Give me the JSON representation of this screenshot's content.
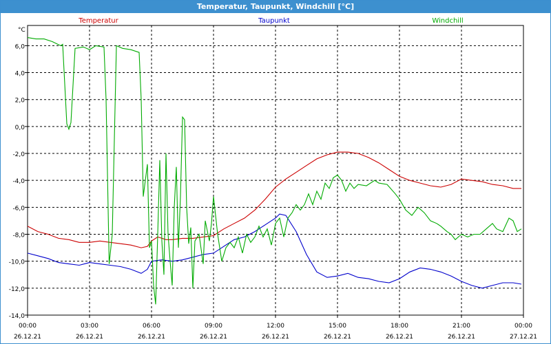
{
  "window": {
    "title": "Temperatur, Taupunkt, Windchill [°C]"
  },
  "chart_data": {
    "type": "line",
    "title": "Temperatur, Taupunkt, Windchill [°C]",
    "ylabel": "°C",
    "ylim": [
      -14,
      7.5
    ],
    "yticks": [
      "6,0",
      "4,0",
      "2,0",
      "0,0",
      "-2,0",
      "-4,0",
      "-6,0",
      "-8,0",
      "-10,0",
      "-12,0",
      "-14,0"
    ],
    "ytick_values": [
      6,
      4,
      2,
      0,
      -2,
      -4,
      -6,
      -8,
      -10,
      -12,
      -14
    ],
    "xlim": [
      0,
      24
    ],
    "xticks": [
      {
        "time": "00:00",
        "date": "26.12.21",
        "h": 0
      },
      {
        "time": "03:00",
        "date": "26.12.21",
        "h": 3
      },
      {
        "time": "06:00",
        "date": "26.12.21",
        "h": 6
      },
      {
        "time": "09:00",
        "date": "26.12.21",
        "h": 9
      },
      {
        "time": "12:00",
        "date": "26.12.21",
        "h": 12
      },
      {
        "time": "15:00",
        "date": "26.12.21",
        "h": 15
      },
      {
        "time": "18:00",
        "date": "26.12.21",
        "h": 18
      },
      {
        "time": "21:00",
        "date": "26.12.21",
        "h": 21
      },
      {
        "time": "00:00",
        "date": "27.12.21",
        "h": 24
      }
    ],
    "grid": true,
    "series": [
      {
        "name": "Temperatur",
        "color": "#cc0000",
        "points": [
          [
            0,
            -7.4
          ],
          [
            0.5,
            -7.8
          ],
          [
            1,
            -8.0
          ],
          [
            1.5,
            -8.3
          ],
          [
            2,
            -8.4
          ],
          [
            2.5,
            -8.6
          ],
          [
            3,
            -8.6
          ],
          [
            3.5,
            -8.5
          ],
          [
            4,
            -8.6
          ],
          [
            4.5,
            -8.7
          ],
          [
            5,
            -8.8
          ],
          [
            5.5,
            -9.0
          ],
          [
            5.8,
            -8.9
          ],
          [
            6,
            -8.5
          ],
          [
            6.3,
            -8.2
          ],
          [
            6.7,
            -8.4
          ],
          [
            7,
            -8.4
          ],
          [
            7.5,
            -8.3
          ],
          [
            8,
            -8.3
          ],
          [
            8.5,
            -8.2
          ],
          [
            9,
            -8.1
          ],
          [
            9.5,
            -7.6
          ],
          [
            10,
            -7.2
          ],
          [
            10.5,
            -6.8
          ],
          [
            11,
            -6.2
          ],
          [
            11.5,
            -5.4
          ],
          [
            12,
            -4.5
          ],
          [
            12.5,
            -3.9
          ],
          [
            13,
            -3.4
          ],
          [
            13.5,
            -2.9
          ],
          [
            14,
            -2.4
          ],
          [
            14.5,
            -2.1
          ],
          [
            15,
            -1.9
          ],
          [
            15.5,
            -1.9
          ],
          [
            16,
            -2.0
          ],
          [
            16.5,
            -2.3
          ],
          [
            17,
            -2.7
          ],
          [
            17.5,
            -3.2
          ],
          [
            18,
            -3.7
          ],
          [
            18.5,
            -4.0
          ],
          [
            19,
            -4.2
          ],
          [
            19.5,
            -4.4
          ],
          [
            20,
            -4.5
          ],
          [
            20.5,
            -4.3
          ],
          [
            21,
            -3.9
          ],
          [
            21.5,
            -4.0
          ],
          [
            22,
            -4.1
          ],
          [
            22.5,
            -4.3
          ],
          [
            23,
            -4.4
          ],
          [
            23.5,
            -4.6
          ],
          [
            23.9,
            -4.6
          ]
        ]
      },
      {
        "name": "Taupunkt",
        "color": "#0000cc",
        "points": [
          [
            0,
            -9.4
          ],
          [
            0.5,
            -9.6
          ],
          [
            1,
            -9.8
          ],
          [
            1.5,
            -10.1
          ],
          [
            2,
            -10.2
          ],
          [
            2.5,
            -10.3
          ],
          [
            3,
            -10.1
          ],
          [
            3.5,
            -10.2
          ],
          [
            4,
            -10.3
          ],
          [
            4.5,
            -10.4
          ],
          [
            5,
            -10.6
          ],
          [
            5.5,
            -10.9
          ],
          [
            5.8,
            -10.6
          ],
          [
            6,
            -10.0
          ],
          [
            6.5,
            -9.9
          ],
          [
            7,
            -10.0
          ],
          [
            7.5,
            -9.9
          ],
          [
            8,
            -9.7
          ],
          [
            8.5,
            -9.5
          ],
          [
            9,
            -9.4
          ],
          [
            9.5,
            -8.9
          ],
          [
            10,
            -8.4
          ],
          [
            10.5,
            -8.2
          ],
          [
            11,
            -7.8
          ],
          [
            11.5,
            -7.3
          ],
          [
            12,
            -6.8
          ],
          [
            12.2,
            -6.5
          ],
          [
            12.5,
            -6.6
          ],
          [
            13,
            -7.8
          ],
          [
            13.5,
            -9.5
          ],
          [
            14,
            -10.8
          ],
          [
            14.5,
            -11.2
          ],
          [
            15,
            -11.1
          ],
          [
            15.5,
            -10.9
          ],
          [
            16,
            -11.2
          ],
          [
            16.5,
            -11.3
          ],
          [
            17,
            -11.5
          ],
          [
            17.5,
            -11.6
          ],
          [
            18,
            -11.3
          ],
          [
            18.5,
            -10.8
          ],
          [
            19,
            -10.5
          ],
          [
            19.5,
            -10.6
          ],
          [
            20,
            -10.8
          ],
          [
            20.5,
            -11.1
          ],
          [
            21,
            -11.5
          ],
          [
            21.5,
            -11.8
          ],
          [
            22,
            -12.0
          ],
          [
            22.5,
            -11.8
          ],
          [
            23,
            -11.6
          ],
          [
            23.5,
            -11.6
          ],
          [
            23.9,
            -11.7
          ]
        ]
      },
      {
        "name": "Windchill",
        "color": "#00aa00",
        "points": [
          [
            0,
            6.6
          ],
          [
            0.4,
            6.5
          ],
          [
            0.8,
            6.5
          ],
          [
            1.2,
            6.3
          ],
          [
            1.6,
            6.0
          ],
          [
            1.7,
            6.1
          ],
          [
            1.9,
            0.2
          ],
          [
            2.0,
            -0.2
          ],
          [
            2.1,
            0.3
          ],
          [
            2.3,
            5.8
          ],
          [
            2.7,
            5.9
          ],
          [
            3.0,
            5.7
          ],
          [
            3.3,
            6.0
          ],
          [
            3.7,
            5.9
          ],
          [
            3.8,
            2.0
          ],
          [
            3.95,
            -10.2
          ],
          [
            4.1,
            -8.0
          ],
          [
            4.3,
            6.0
          ],
          [
            4.6,
            5.8
          ],
          [
            5.0,
            5.7
          ],
          [
            5.4,
            5.5
          ],
          [
            5.5,
            2.0
          ],
          [
            5.6,
            -5.2
          ],
          [
            5.8,
            -2.8
          ],
          [
            5.9,
            -9.0
          ],
          [
            6.0,
            -8.5
          ],
          [
            6.1,
            -11.8
          ],
          [
            6.2,
            -13.2
          ],
          [
            6.3,
            -8.0
          ],
          [
            6.4,
            -2.5
          ],
          [
            6.5,
            -8.5
          ],
          [
            6.6,
            -11.0
          ],
          [
            6.7,
            -2.0
          ],
          [
            6.8,
            -8.0
          ],
          [
            6.9,
            -10.0
          ],
          [
            7.0,
            -11.8
          ],
          [
            7.1,
            -6.0
          ],
          [
            7.2,
            -3.0
          ],
          [
            7.3,
            -9.0
          ],
          [
            7.4,
            -5.2
          ],
          [
            7.5,
            0.7
          ],
          [
            7.6,
            0.5
          ],
          [
            7.7,
            -6.0
          ],
          [
            7.8,
            -8.7
          ],
          [
            7.9,
            -7.5
          ],
          [
            8.0,
            -12.0
          ],
          [
            8.1,
            -8.5
          ],
          [
            8.3,
            -8.0
          ],
          [
            8.5,
            -10.2
          ],
          [
            8.6,
            -7.0
          ],
          [
            8.8,
            -8.5
          ],
          [
            8.9,
            -7.2
          ],
          [
            9.0,
            -5.2
          ],
          [
            9.2,
            -8.0
          ],
          [
            9.4,
            -10.0
          ],
          [
            9.6,
            -9.0
          ],
          [
            9.8,
            -8.6
          ],
          [
            10.0,
            -9.0
          ],
          [
            10.2,
            -8.2
          ],
          [
            10.4,
            -9.4
          ],
          [
            10.6,
            -8.0
          ],
          [
            10.8,
            -8.6
          ],
          [
            11.0,
            -8.2
          ],
          [
            11.2,
            -7.4
          ],
          [
            11.4,
            -8.2
          ],
          [
            11.6,
            -7.6
          ],
          [
            11.8,
            -8.8
          ],
          [
            12.0,
            -7.2
          ],
          [
            12.2,
            -6.8
          ],
          [
            12.4,
            -8.2
          ],
          [
            12.6,
            -6.8
          ],
          [
            12.8,
            -6.4
          ],
          [
            13.0,
            -5.8
          ],
          [
            13.2,
            -6.2
          ],
          [
            13.4,
            -5.8
          ],
          [
            13.6,
            -5.0
          ],
          [
            13.8,
            -5.8
          ],
          [
            14.0,
            -4.8
          ],
          [
            14.2,
            -5.4
          ],
          [
            14.4,
            -4.2
          ],
          [
            14.6,
            -4.6
          ],
          [
            14.8,
            -3.8
          ],
          [
            15.0,
            -3.6
          ],
          [
            15.2,
            -4.0
          ],
          [
            15.4,
            -4.8
          ],
          [
            15.6,
            -4.2
          ],
          [
            15.8,
            -4.6
          ],
          [
            16.0,
            -4.3
          ],
          [
            16.4,
            -4.4
          ],
          [
            16.8,
            -4.0
          ],
          [
            17.0,
            -4.2
          ],
          [
            17.4,
            -4.3
          ],
          [
            17.8,
            -5.0
          ],
          [
            18.0,
            -5.4
          ],
          [
            18.3,
            -6.2
          ],
          [
            18.6,
            -6.6
          ],
          [
            18.9,
            -6.0
          ],
          [
            19.2,
            -6.4
          ],
          [
            19.5,
            -7.0
          ],
          [
            19.8,
            -7.2
          ],
          [
            20.0,
            -7.4
          ],
          [
            20.3,
            -7.8
          ],
          [
            20.5,
            -8.0
          ],
          [
            20.7,
            -8.4
          ],
          [
            21.0,
            -8.0
          ],
          [
            21.3,
            -8.2
          ],
          [
            21.6,
            -8.0
          ],
          [
            21.9,
            -8.0
          ],
          [
            22.2,
            -7.6
          ],
          [
            22.5,
            -7.2
          ],
          [
            22.7,
            -7.6
          ],
          [
            23.0,
            -7.8
          ],
          [
            23.3,
            -6.8
          ],
          [
            23.5,
            -7.0
          ],
          [
            23.7,
            -7.8
          ],
          [
            23.9,
            -7.6
          ]
        ]
      }
    ]
  }
}
